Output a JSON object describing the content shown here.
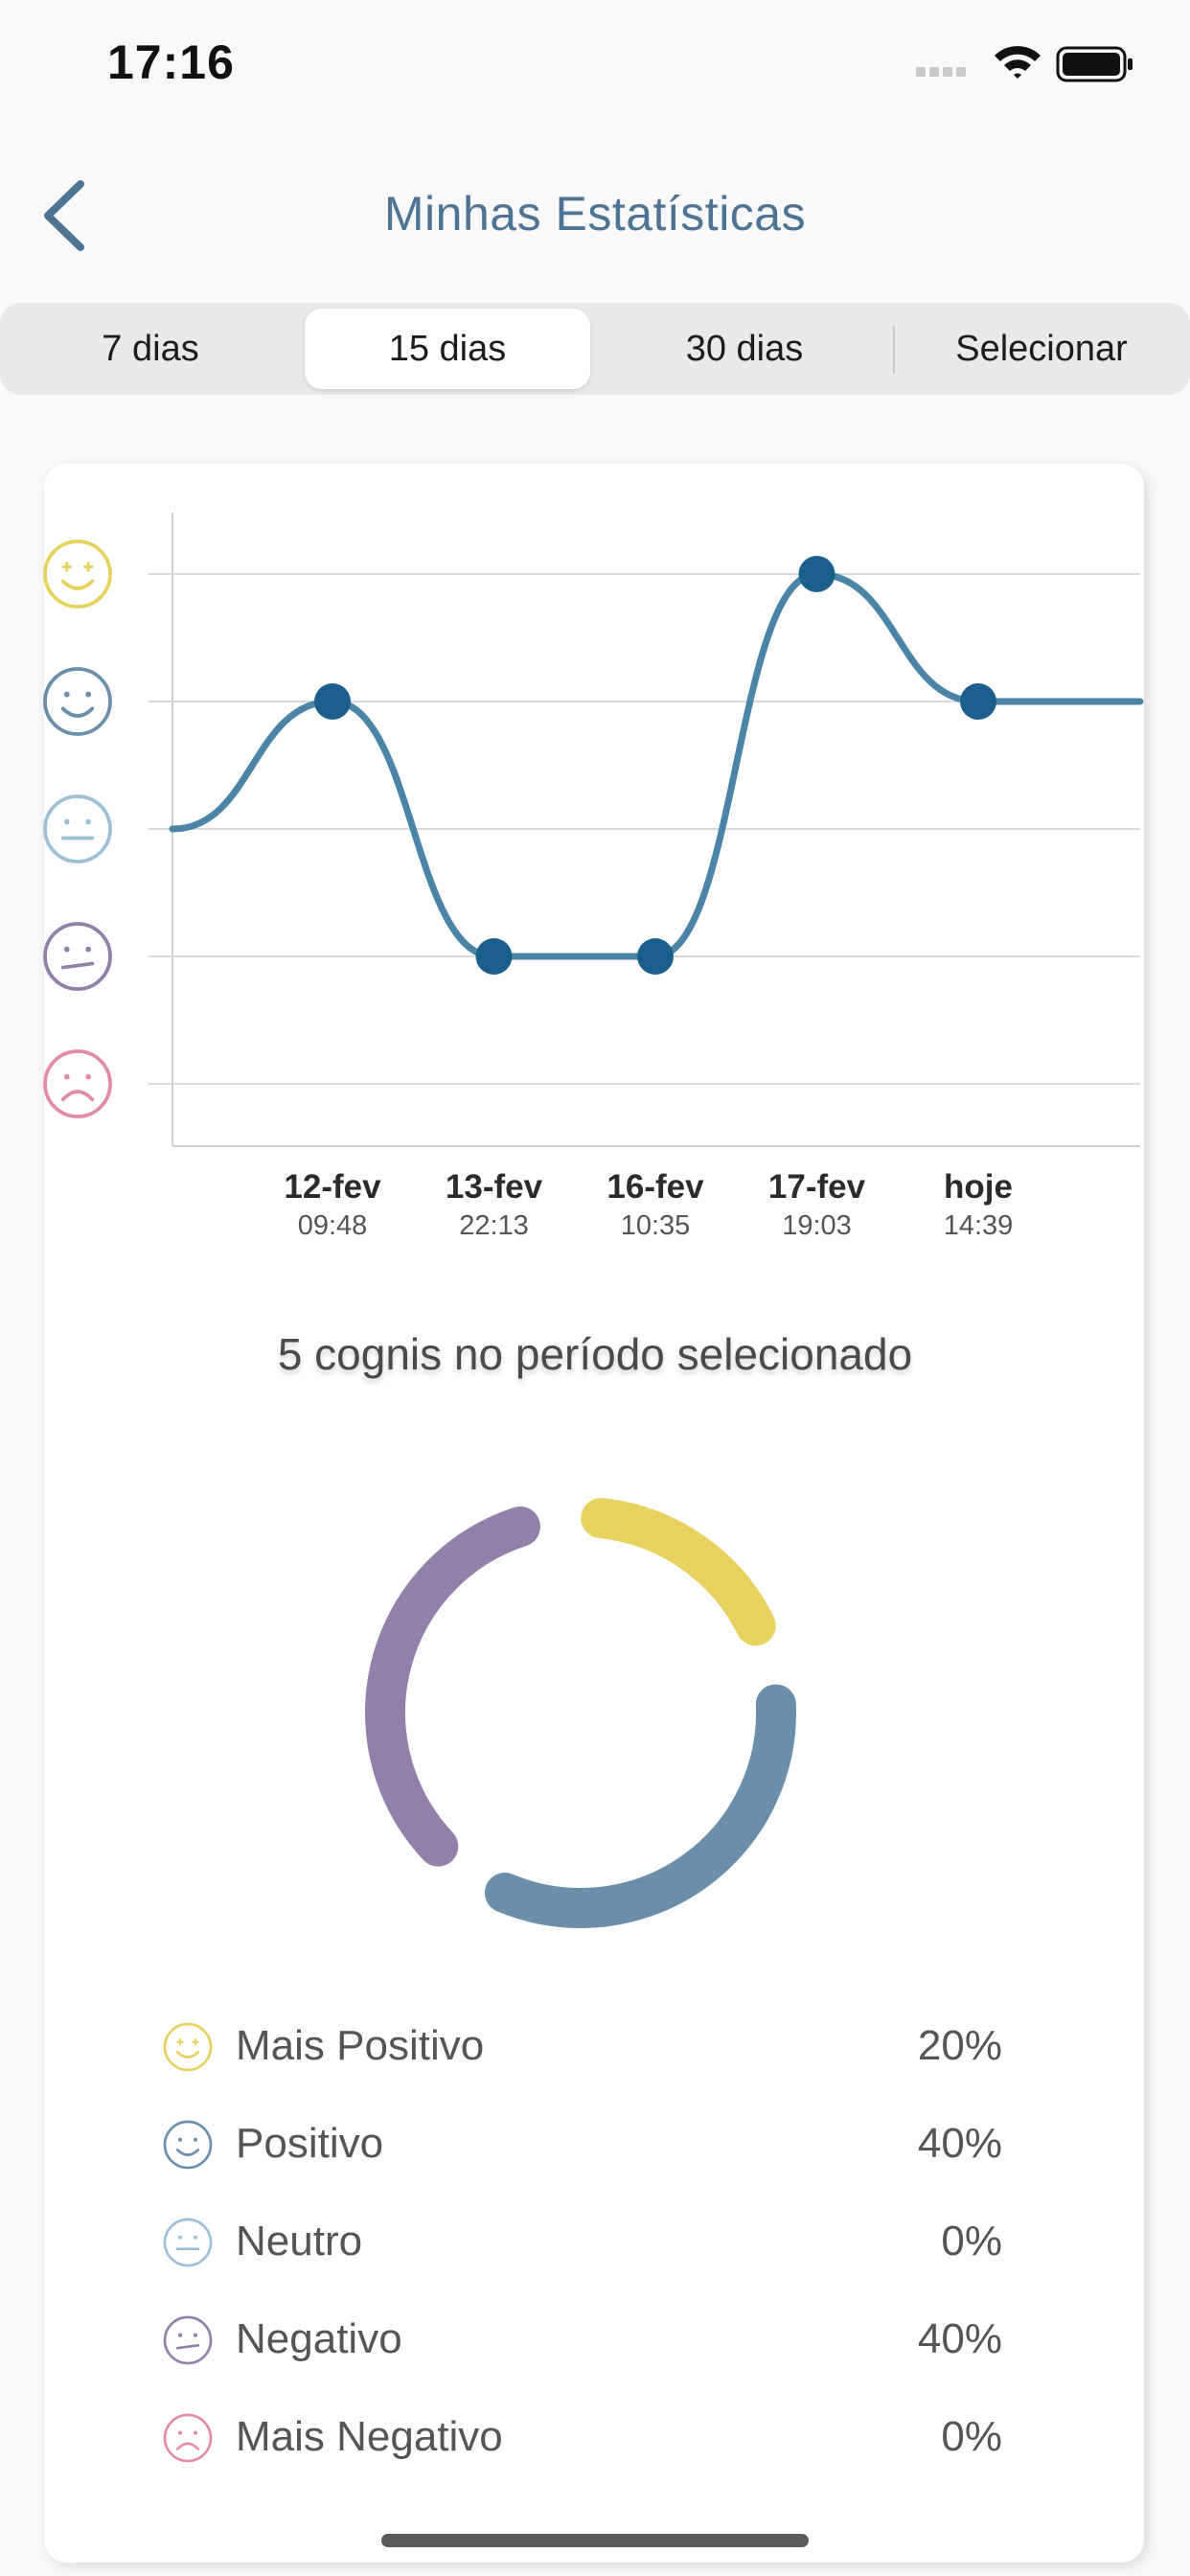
{
  "status_bar": {
    "time": "17:16"
  },
  "header": {
    "title": "Minhas Estatísticas",
    "back_icon": "chevron-left-icon"
  },
  "segments": [
    {
      "label": "7 dias",
      "active": false
    },
    {
      "label": "15 dias",
      "active": true
    },
    {
      "label": "30 dias",
      "active": false
    },
    {
      "label": "Selecionar",
      "active": false
    }
  ],
  "colors": {
    "accent": "#4e7495",
    "line": "#4a85a8",
    "point": "#1b5f8c",
    "mais_positivo": "#e8d25f",
    "positivo": "#6b8eab",
    "neutro": "#9cc0d6",
    "negativo": "#9280aa",
    "mais_negativo": "#e28ba4"
  },
  "chart_data": {
    "type": "line",
    "y_levels": [
      "Mais Negativo",
      "Negativo",
      "Neutro",
      "Positivo",
      "Mais Positivo"
    ],
    "x": [
      {
        "date": "12-fev",
        "time": "09:48"
      },
      {
        "date": "13-fev",
        "time": "22:13"
      },
      {
        "date": "16-fev",
        "time": "10:35"
      },
      {
        "date": "17-fev",
        "time": "19:03"
      },
      {
        "date": "hoje",
        "time": "14:39"
      }
    ],
    "values": [
      3,
      1,
      1,
      4,
      3
    ],
    "start_value": 2,
    "end_value": 3,
    "grid": true
  },
  "summary": "5 cognis no período selecionado",
  "donut": [
    {
      "key": "mais_positivo",
      "percent": 20
    },
    {
      "key": "positivo",
      "percent": 40
    },
    {
      "key": "neutro",
      "percent": 0
    },
    {
      "key": "negativo",
      "percent": 40
    },
    {
      "key": "mais_negativo",
      "percent": 0
    }
  ],
  "legend": [
    {
      "label": "Mais Positivo",
      "percent": "20%",
      "icon": "very-happy-face-icon",
      "color_key": "mais_positivo"
    },
    {
      "label": "Positivo",
      "percent": "40%",
      "icon": "happy-face-icon",
      "color_key": "positivo"
    },
    {
      "label": "Neutro",
      "percent": "0%",
      "icon": "neutral-face-icon",
      "color_key": "neutro"
    },
    {
      "label": "Negativo",
      "percent": "40%",
      "icon": "unhappy-face-icon",
      "color_key": "negativo"
    },
    {
      "label": "Mais Negativo",
      "percent": "0%",
      "icon": "sad-face-icon",
      "color_key": "mais_negativo"
    }
  ]
}
